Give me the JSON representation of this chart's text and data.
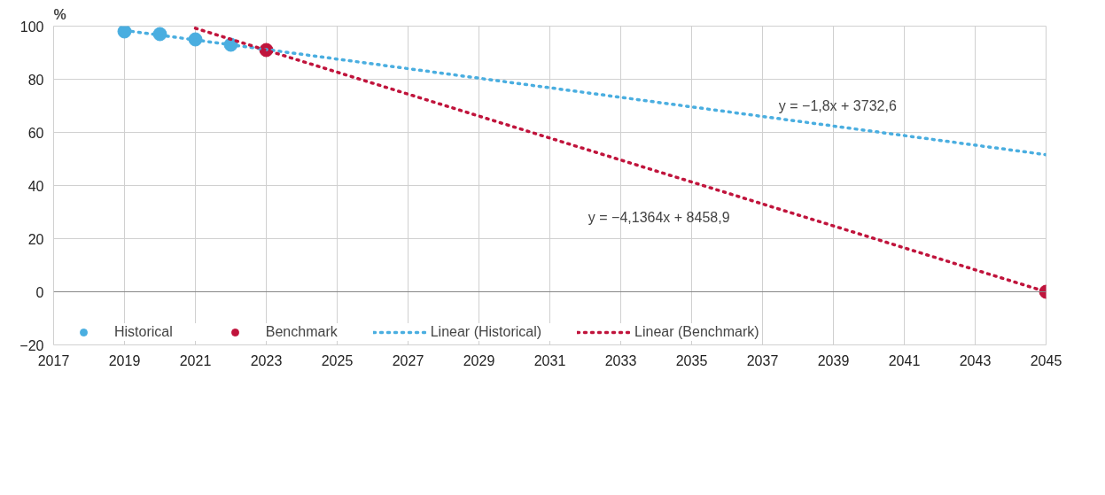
{
  "chart_data": {
    "type": "scatter",
    "ylabel": "%",
    "xlim": [
      2017,
      2045
    ],
    "xticks": [
      2017,
      2019,
      2021,
      2023,
      2025,
      2027,
      2029,
      2031,
      2033,
      2035,
      2037,
      2039,
      2041,
      2043,
      2045
    ],
    "ylim": [
      -20,
      100
    ],
    "yticks": [
      -20,
      0,
      20,
      40,
      60,
      80,
      100
    ],
    "grid": true,
    "legend": "bottom",
    "marker": "circle",
    "series": [
      {
        "name": "Historical",
        "color": "#4aaee0",
        "x": [
          2019,
          2020,
          2021,
          2022
        ],
        "values": [
          98,
          97,
          95,
          93
        ]
      },
      {
        "name": "Benchmark",
        "color": "#c0143c",
        "x": [
          2023,
          2045
        ],
        "values": [
          91,
          0
        ]
      },
      {
        "name": "Linear (Historical)",
        "type": "line",
        "marker": "none",
        "line_style": "dotted",
        "color": "#4aaee0",
        "x": [
          2019,
          2045
        ],
        "values": [
          98.4,
          51.6
        ]
      },
      {
        "name": "Linear (Benchmark)",
        "type": "line",
        "marker": "none",
        "line_style": "dotted",
        "color": "#c0143c",
        "x": [
          2021,
          2045
        ],
        "values": [
          99.2,
          0
        ]
      }
    ],
    "annotations": [
      "y = −1,8x + 3732,6",
      "y = −4,1364x + 8458,9"
    ]
  }
}
